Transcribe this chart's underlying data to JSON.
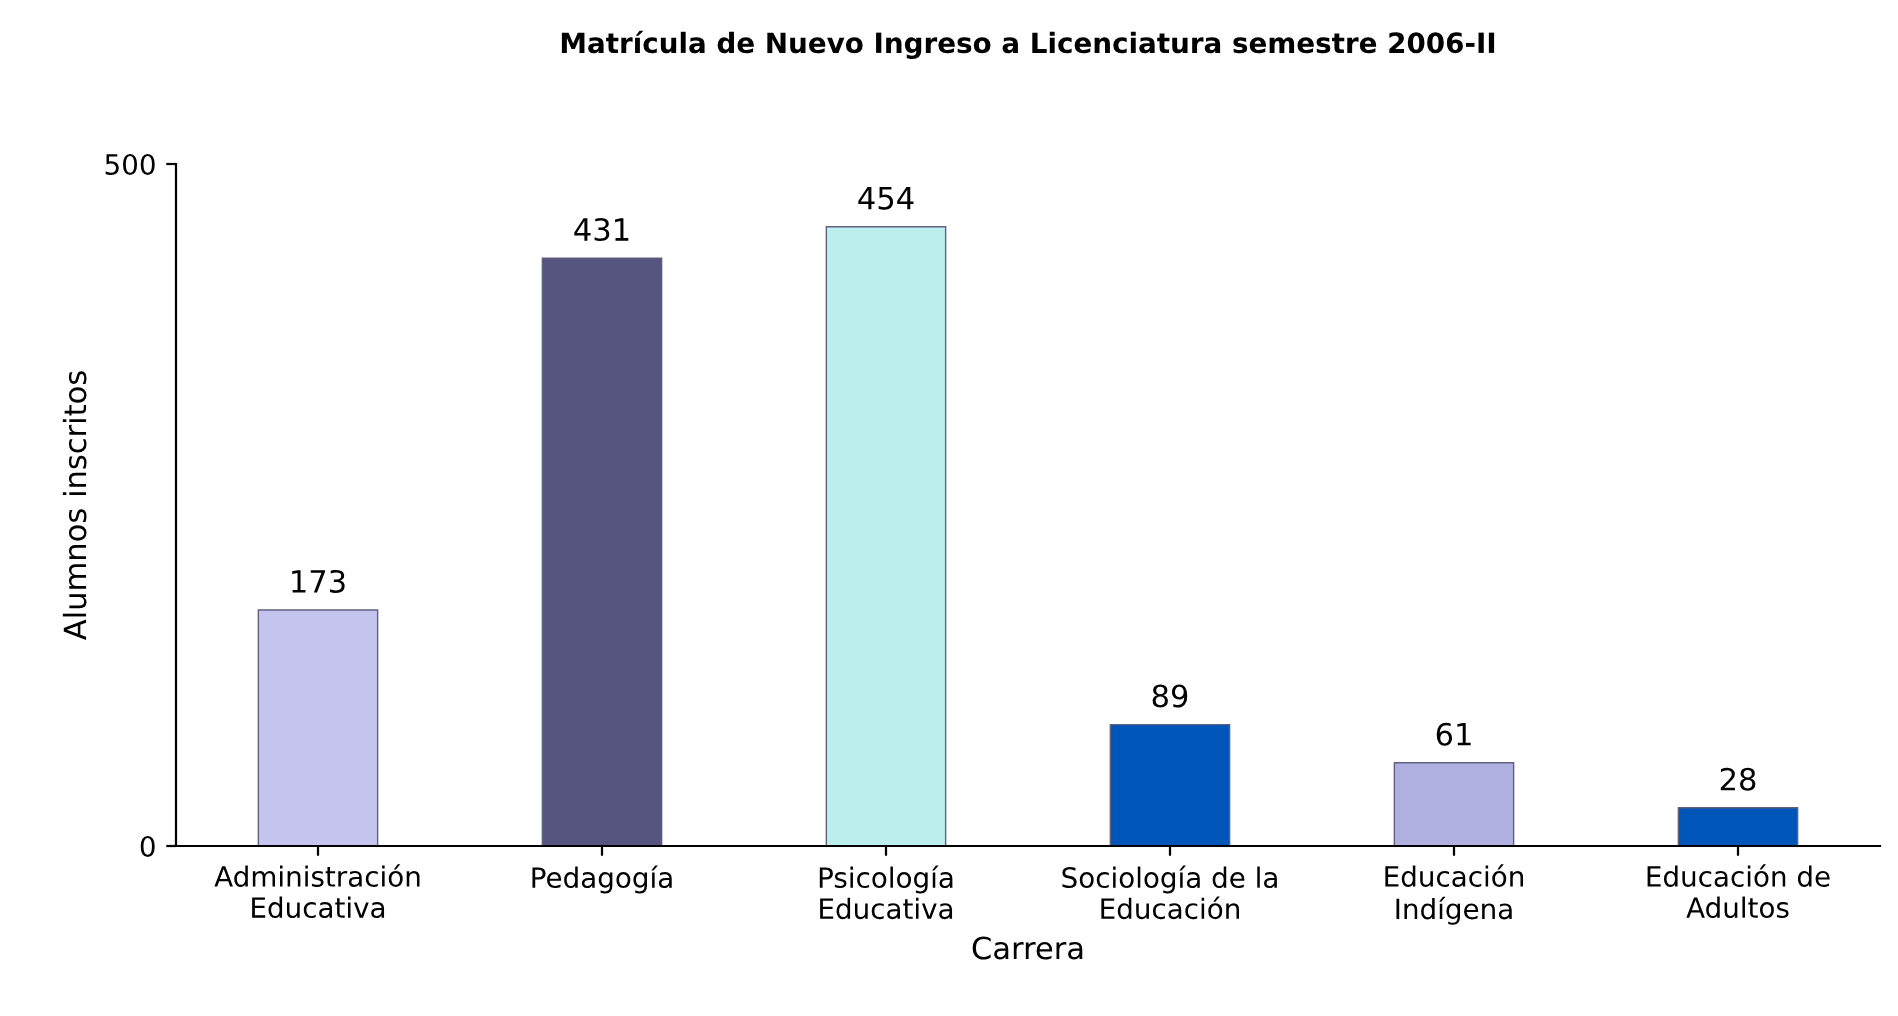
{
  "chart_data": {
    "type": "bar",
    "title": "Matrícula de Nuevo Ingreso a Licenciatura semestre 2006-II",
    "xlabel": "Carrera",
    "ylabel": "Alumnos inscritos",
    "categories": [
      "Administración\nEducativa",
      "Pedagogía",
      "Psicología\nEducativa",
      "Sociología de la\nEducación",
      "Educación\nIndígena",
      "Educación de\nAdultos"
    ],
    "values": [
      173,
      431,
      454,
      89,
      61,
      28
    ],
    "colors": [
      "#c4c4ee",
      "#55557f",
      "#bdeeee",
      "#0056b8",
      "#b0b0e0",
      "#0056b8"
    ],
    "ylim": [
      0,
      500
    ],
    "yticks": [
      0,
      500
    ],
    "grid": false,
    "data_labels": true
  }
}
